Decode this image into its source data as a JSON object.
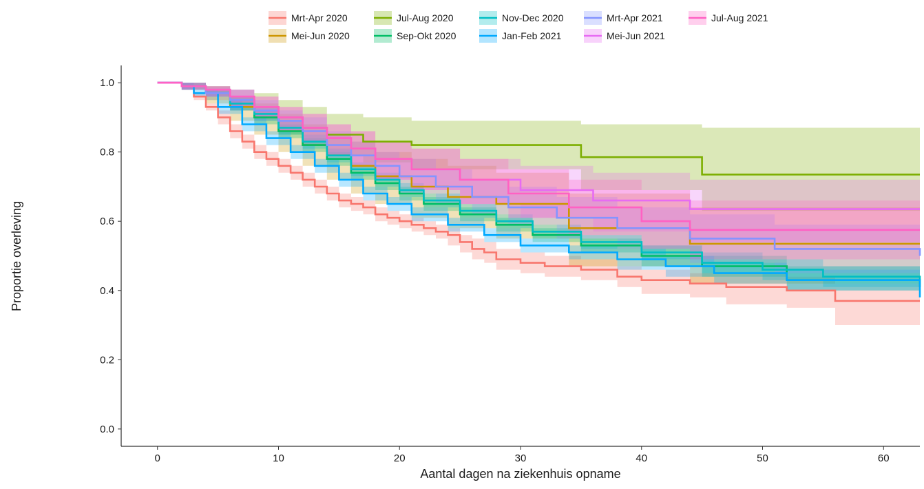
{
  "chart_data": {
    "type": "line",
    "title": "",
    "xlabel": "Aantal dagen na ziekenhuis opname",
    "ylabel": "Proportie overleving",
    "xlim": [
      -3,
      63
    ],
    "ylim": [
      -0.05,
      1.05
    ],
    "x_ticks": [
      0,
      10,
      20,
      30,
      40,
      50,
      60
    ],
    "y_ticks": [
      0.0,
      0.2,
      0.4,
      0.6,
      0.8,
      1.0
    ],
    "y_tick_labels": [
      "0.0",
      "0.2",
      "0.4",
      "0.6",
      "0.8",
      "1.0"
    ],
    "grid": false,
    "legend_position": "top",
    "step": true,
    "confidence_bands": true,
    "series": [
      {
        "name": "Mrt-Apr 2020",
        "color": "#F8766D",
        "x": [
          0,
          2,
          3,
          4,
          5,
          6,
          7,
          8,
          9,
          10,
          11,
          12,
          13,
          14,
          15,
          16,
          17,
          18,
          19,
          20,
          21,
          22,
          23,
          24,
          25,
          26,
          27,
          28,
          30,
          32,
          35,
          38,
          40,
          44,
          47,
          52,
          56,
          63
        ],
        "y": [
          1.0,
          0.99,
          0.96,
          0.93,
          0.9,
          0.86,
          0.83,
          0.8,
          0.78,
          0.76,
          0.74,
          0.72,
          0.7,
          0.68,
          0.66,
          0.65,
          0.64,
          0.62,
          0.61,
          0.6,
          0.59,
          0.58,
          0.57,
          0.56,
          0.54,
          0.52,
          0.51,
          0.49,
          0.48,
          0.47,
          0.46,
          0.44,
          0.43,
          0.42,
          0.41,
          0.4,
          0.37,
          0.37
        ],
        "lower": [
          1.0,
          0.98,
          0.95,
          0.92,
          0.88,
          0.84,
          0.81,
          0.78,
          0.76,
          0.74,
          0.72,
          0.7,
          0.68,
          0.66,
          0.64,
          0.63,
          0.62,
          0.6,
          0.59,
          0.58,
          0.57,
          0.56,
          0.55,
          0.53,
          0.51,
          0.49,
          0.48,
          0.46,
          0.45,
          0.44,
          0.43,
          0.41,
          0.39,
          0.38,
          0.36,
          0.35,
          0.3,
          0.3
        ],
        "upper": [
          1.0,
          1.0,
          0.97,
          0.94,
          0.92,
          0.88,
          0.85,
          0.82,
          0.8,
          0.78,
          0.76,
          0.74,
          0.72,
          0.7,
          0.68,
          0.67,
          0.66,
          0.64,
          0.63,
          0.62,
          0.61,
          0.6,
          0.59,
          0.58,
          0.56,
          0.55,
          0.54,
          0.52,
          0.51,
          0.5,
          0.49,
          0.47,
          0.46,
          0.45,
          0.45,
          0.44,
          0.42,
          0.42
        ]
      },
      {
        "name": "Mei-Jun 2020",
        "color": "#CD9600",
        "x": [
          0,
          2,
          4,
          6,
          8,
          10,
          12,
          14,
          16,
          18,
          21,
          24,
          28,
          34,
          44,
          63
        ],
        "y": [
          1.0,
          0.99,
          0.97,
          0.93,
          0.9,
          0.86,
          0.82,
          0.79,
          0.76,
          0.73,
          0.7,
          0.67,
          0.65,
          0.58,
          0.535,
          0.535
        ],
        "lower": [
          1.0,
          0.98,
          0.94,
          0.89,
          0.85,
          0.8,
          0.76,
          0.72,
          0.68,
          0.65,
          0.61,
          0.58,
          0.55,
          0.47,
          0.42,
          0.42
        ],
        "upper": [
          1.0,
          1.0,
          0.99,
          0.96,
          0.94,
          0.91,
          0.88,
          0.85,
          0.83,
          0.8,
          0.78,
          0.76,
          0.74,
          0.68,
          0.64,
          0.64
        ]
      },
      {
        "name": "Jul-Aug 2020",
        "color": "#7CAE00",
        "x": [
          0,
          2,
          4,
          6,
          8,
          10,
          12,
          14,
          17,
          21,
          35,
          45,
          63
        ],
        "y": [
          1.0,
          0.99,
          0.97,
          0.95,
          0.93,
          0.9,
          0.87,
          0.85,
          0.83,
          0.82,
          0.785,
          0.735,
          0.735
        ],
        "lower": [
          1.0,
          0.98,
          0.95,
          0.92,
          0.89,
          0.85,
          0.82,
          0.79,
          0.77,
          0.75,
          0.69,
          0.63,
          0.63
        ],
        "upper": [
          1.0,
          1.0,
          0.99,
          0.98,
          0.97,
          0.95,
          0.93,
          0.91,
          0.9,
          0.89,
          0.88,
          0.87,
          0.87
        ]
      },
      {
        "name": "Sep-Okt 2020",
        "color": "#00BE67",
        "x": [
          0,
          2,
          4,
          6,
          8,
          10,
          12,
          14,
          16,
          18,
          20,
          22,
          25,
          28,
          31,
          35,
          40,
          45,
          52,
          63
        ],
        "y": [
          1.0,
          0.99,
          0.97,
          0.94,
          0.9,
          0.86,
          0.82,
          0.78,
          0.74,
          0.71,
          0.68,
          0.65,
          0.62,
          0.59,
          0.56,
          0.53,
          0.5,
          0.47,
          0.43,
          0.41
        ],
        "lower": [
          1.0,
          0.98,
          0.96,
          0.92,
          0.88,
          0.84,
          0.8,
          0.76,
          0.72,
          0.69,
          0.66,
          0.63,
          0.6,
          0.57,
          0.54,
          0.51,
          0.47,
          0.44,
          0.4,
          0.37
        ],
        "upper": [
          1.0,
          1.0,
          0.98,
          0.96,
          0.92,
          0.88,
          0.84,
          0.8,
          0.76,
          0.73,
          0.7,
          0.67,
          0.64,
          0.61,
          0.58,
          0.55,
          0.53,
          0.5,
          0.47,
          0.45
        ]
      },
      {
        "name": "Nov-Dec 2020",
        "color": "#00BFC4",
        "x": [
          0,
          2,
          4,
          6,
          8,
          10,
          12,
          14,
          16,
          18,
          20,
          22,
          25,
          28,
          31,
          35,
          40,
          45,
          50,
          55,
          63
        ],
        "y": [
          1.0,
          0.99,
          0.97,
          0.94,
          0.91,
          0.87,
          0.83,
          0.79,
          0.75,
          0.72,
          0.69,
          0.66,
          0.63,
          0.6,
          0.57,
          0.54,
          0.51,
          0.48,
          0.46,
          0.44,
          0.43
        ],
        "lower": [
          1.0,
          0.98,
          0.96,
          0.92,
          0.89,
          0.85,
          0.81,
          0.77,
          0.73,
          0.7,
          0.67,
          0.64,
          0.61,
          0.58,
          0.55,
          0.52,
          0.49,
          0.45,
          0.43,
          0.41,
          0.39
        ],
        "upper": [
          1.0,
          1.0,
          0.98,
          0.96,
          0.93,
          0.89,
          0.85,
          0.81,
          0.77,
          0.74,
          0.71,
          0.68,
          0.65,
          0.62,
          0.59,
          0.56,
          0.53,
          0.51,
          0.49,
          0.47,
          0.47
        ]
      },
      {
        "name": "Jan-Feb 2021",
        "color": "#00A9FF",
        "x": [
          0,
          2,
          3,
          5,
          7,
          9,
          11,
          13,
          15,
          17,
          19,
          21,
          24,
          27,
          30,
          34,
          38,
          42,
          46,
          52,
          63
        ],
        "y": [
          1.0,
          0.99,
          0.97,
          0.93,
          0.88,
          0.84,
          0.8,
          0.76,
          0.72,
          0.68,
          0.65,
          0.62,
          0.59,
          0.56,
          0.53,
          0.51,
          0.49,
          0.47,
          0.45,
          0.43,
          0.38
        ],
        "lower": [
          1.0,
          0.98,
          0.96,
          0.91,
          0.86,
          0.82,
          0.78,
          0.74,
          0.7,
          0.66,
          0.63,
          0.6,
          0.57,
          0.54,
          0.51,
          0.49,
          0.46,
          0.44,
          0.42,
          0.4,
          0.35
        ],
        "upper": [
          1.0,
          1.0,
          0.98,
          0.95,
          0.9,
          0.86,
          0.82,
          0.78,
          0.74,
          0.7,
          0.67,
          0.64,
          0.61,
          0.58,
          0.55,
          0.53,
          0.52,
          0.5,
          0.48,
          0.46,
          0.42
        ]
      },
      {
        "name": "Mrt-Apr 2021",
        "color": "#8494FF",
        "x": [
          0,
          2,
          4,
          6,
          8,
          10,
          12,
          14,
          16,
          18,
          20,
          23,
          26,
          29,
          33,
          38,
          44,
          51,
          63
        ],
        "y": [
          1.0,
          0.99,
          0.97,
          0.95,
          0.92,
          0.89,
          0.86,
          0.82,
          0.79,
          0.76,
          0.73,
          0.7,
          0.67,
          0.64,
          0.61,
          0.58,
          0.55,
          0.52,
          0.5
        ],
        "lower": [
          1.0,
          0.98,
          0.95,
          0.92,
          0.89,
          0.86,
          0.82,
          0.78,
          0.75,
          0.72,
          0.68,
          0.65,
          0.62,
          0.59,
          0.55,
          0.52,
          0.48,
          0.45,
          0.42
        ],
        "upper": [
          1.0,
          1.0,
          0.99,
          0.98,
          0.95,
          0.92,
          0.9,
          0.86,
          0.83,
          0.8,
          0.78,
          0.75,
          0.72,
          0.7,
          0.67,
          0.64,
          0.62,
          0.59,
          0.58
        ]
      },
      {
        "name": "Mei-Jun 2021",
        "color": "#E76BF3",
        "x": [
          0,
          2,
          4,
          6,
          8,
          10,
          12,
          14,
          16,
          18,
          21,
          25,
          30,
          36,
          44,
          63
        ],
        "y": [
          1.0,
          0.99,
          0.98,
          0.96,
          0.93,
          0.9,
          0.87,
          0.84,
          0.81,
          0.78,
          0.75,
          0.72,
          0.69,
          0.66,
          0.635,
          0.635
        ],
        "lower": [
          1.0,
          0.98,
          0.96,
          0.93,
          0.9,
          0.86,
          0.83,
          0.79,
          0.76,
          0.72,
          0.69,
          0.65,
          0.61,
          0.57,
          0.54,
          0.54
        ],
        "upper": [
          1.0,
          1.0,
          0.99,
          0.98,
          0.96,
          0.93,
          0.91,
          0.88,
          0.86,
          0.83,
          0.81,
          0.78,
          0.76,
          0.74,
          0.72,
          0.72
        ]
      },
      {
        "name": "Jul-Aug 2021",
        "color": "#FF61C3",
        "x": [
          0,
          2,
          4,
          6,
          8,
          10,
          12,
          14,
          16,
          18,
          21,
          25,
          29,
          34,
          40,
          44,
          63
        ],
        "y": [
          1.0,
          0.99,
          0.98,
          0.96,
          0.93,
          0.9,
          0.87,
          0.84,
          0.81,
          0.78,
          0.75,
          0.72,
          0.68,
          0.64,
          0.6,
          0.575,
          0.575
        ],
        "lower": [
          1.0,
          0.98,
          0.96,
          0.93,
          0.9,
          0.86,
          0.83,
          0.79,
          0.76,
          0.72,
          0.69,
          0.65,
          0.61,
          0.56,
          0.52,
          0.49,
          0.49
        ],
        "upper": [
          1.0,
          1.0,
          0.99,
          0.98,
          0.96,
          0.93,
          0.91,
          0.88,
          0.86,
          0.83,
          0.81,
          0.78,
          0.75,
          0.72,
          0.69,
          0.66,
          0.66
        ]
      }
    ]
  }
}
